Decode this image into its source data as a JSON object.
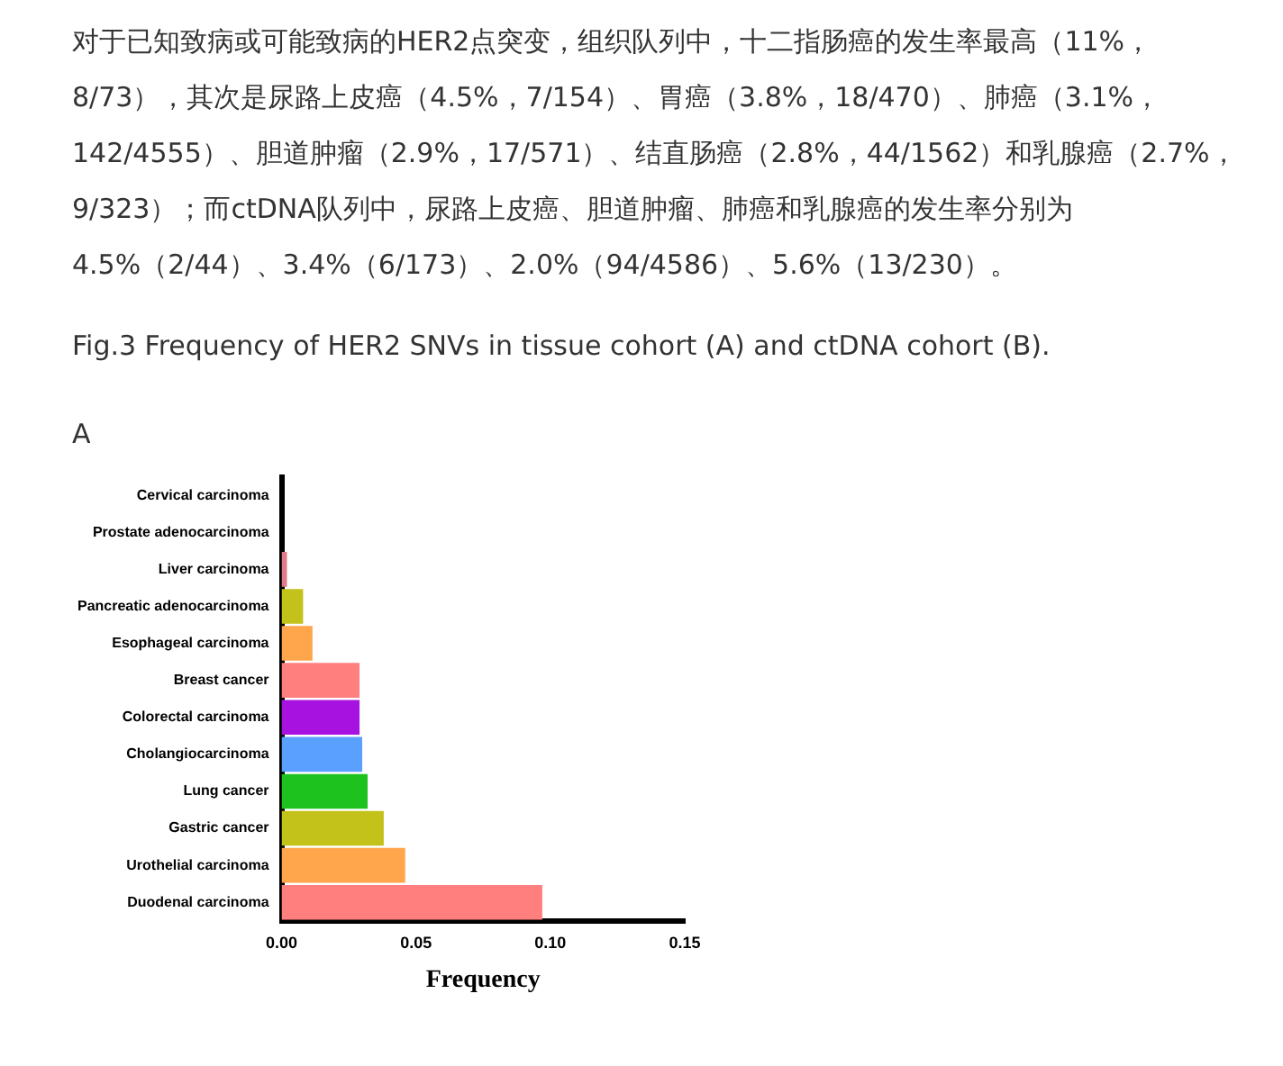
{
  "chart_data": {
    "type": "bar",
    "orientation": "horizontal",
    "title": "Fig.3 Frequency of HER2 SNVs in tissue cohort (A) and ctDNA cohort (B).",
    "annotations": [
      "对于已知致病或可能致病的HER2点突变，组织队列中，十二指肠癌的发生率最高（11%，8/73），其次是尿路上皮癌（4.5%，7/154）、胃癌（3.8%，18/470）、肺癌（3.1%，142/4555）、胆道肿瘤（2.9%，17/571）、结直肠癌（2.8%，44/1562）和乳腺癌（2.7%，9/323）；而ctDNA队列中，尿路上皮癌、胆道肿瘤、肺癌和乳腺癌的发生率分别为4.5%（2/44）、3.4%（6/173）、2.0%（94/4586）、5.6%（13/230）。",
      "A"
    ],
    "xlabel": "Frequency",
    "categories": [
      "Cervical carcinoma",
      "Prostate adenocarcinoma",
      "Liver carcinoma",
      "Pancreatic adenocarcinoma",
      "Esophageal carcinoma",
      "Breast cancer",
      "Colorectal carcinoma",
      "Cholangiocarcinoma",
      "Lung cancer",
      "Gastric cancer",
      "Urothelial carcinoma",
      "Duodenal carcinoma"
    ],
    "values": [
      0,
      0,
      0.002,
      0.008,
      0.0115,
      0.029,
      0.029,
      0.03,
      0.032,
      0.038,
      0.046,
      0.097
    ],
    "colors": [
      "#ff7f7f",
      "#ffa64d",
      "#e07a8a",
      "#c2c21a",
      "#ffa64d",
      "#ff7f7f",
      "#a812e0",
      "#5aa0ff",
      "#1ec21e",
      "#c2c21a",
      "#ffa64d",
      "#ff7f7f"
    ],
    "xlim": [
      0,
      0.15
    ],
    "xticks": [
      {
        "value": 0,
        "label": "0.00"
      },
      {
        "value": 0.05,
        "label": "0.05"
      },
      {
        "value": 0.1,
        "label": "0.10"
      },
      {
        "value": 0.15,
        "label": "0.15"
      }
    ]
  }
}
